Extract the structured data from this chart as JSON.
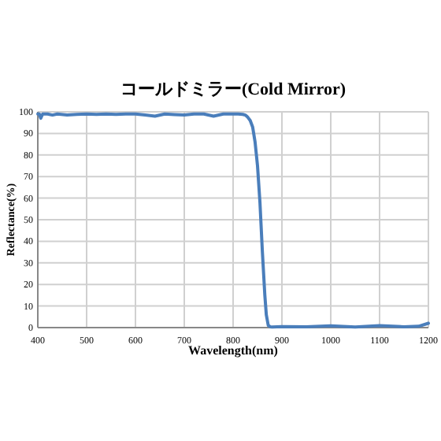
{
  "chart_data": {
    "type": "line",
    "title": "コールドミラー(Cold Mirror)",
    "xlabel": "Wavelength(nm)",
    "ylabel": "Reflectance(%)",
    "x": [
      400,
      403,
      406,
      410,
      420,
      430,
      440,
      460,
      480,
      500,
      520,
      540,
      560,
      580,
      600,
      620,
      640,
      660,
      680,
      700,
      720,
      740,
      760,
      780,
      800,
      810,
      820,
      825,
      830,
      835,
      840,
      845,
      850,
      855,
      860,
      865,
      868,
      872,
      876,
      880,
      900,
      950,
      1000,
      1050,
      1100,
      1150,
      1180,
      1200
    ],
    "series": [
      {
        "color": "#4a7ebb",
        "values": [
          99,
          99,
          97,
          99,
          99,
          98.5,
          99,
          98.5,
          98.8,
          99,
          98.8,
          99,
          98.8,
          99,
          99,
          98.5,
          98,
          99,
          98.7,
          98.5,
          99,
          99,
          98,
          99,
          99,
          99,
          98.8,
          98.5,
          97.5,
          96,
          93,
          86,
          75,
          58,
          35,
          15,
          6,
          1,
          0.4,
          0.3,
          0.5,
          0.4,
          0.8,
          0.3,
          0.9,
          0.4,
          0.6,
          2
        ]
      }
    ],
    "xlim": [
      400,
      1200
    ],
    "ylim": [
      0,
      100
    ],
    "xticks": [
      400,
      500,
      600,
      700,
      800,
      900,
      1000,
      1100,
      1200
    ],
    "yticks": [
      0,
      10,
      20,
      30,
      40,
      50,
      60,
      70,
      80,
      90,
      100
    ],
    "grid": true,
    "line_style": "solid",
    "marker": "none"
  }
}
